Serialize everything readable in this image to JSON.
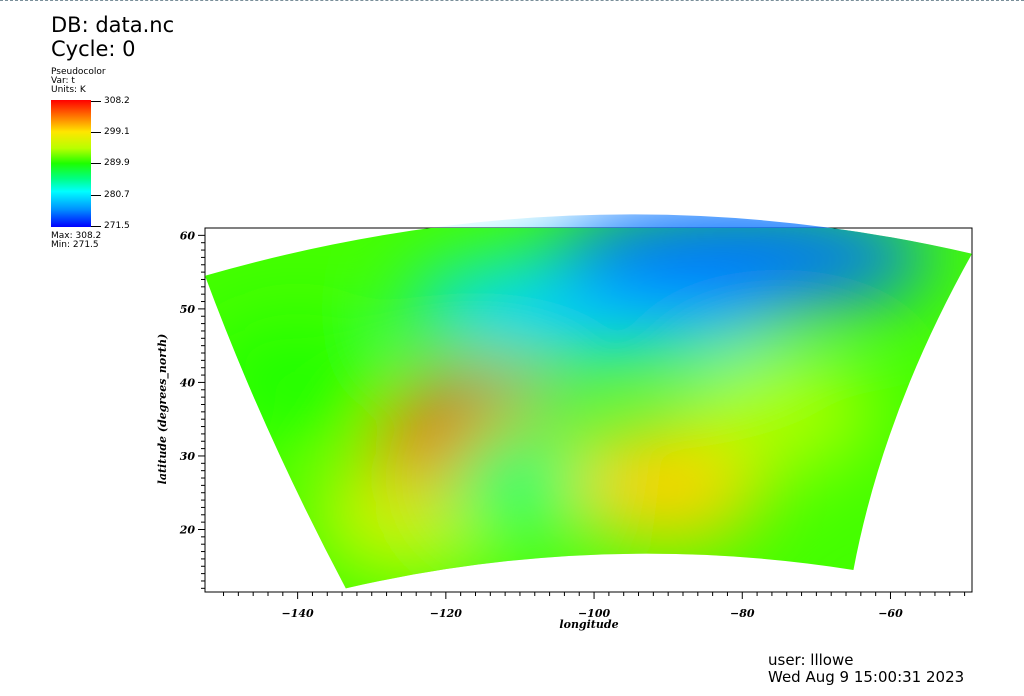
{
  "header": {
    "db_title": "DB: data.nc",
    "cycle": "Cycle: 0"
  },
  "legend": {
    "plot_type": "Pseudocolor",
    "var": "Var: t",
    "units": "Units: K",
    "ticks": [
      "308.2",
      "299.1",
      "289.9",
      "280.7",
      "271.5"
    ],
    "max": "Max:  308.2",
    "min": "Min:  271.5",
    "colormap": [
      "#0000ff",
      "#0092ff",
      "#00ffff",
      "#00ff84",
      "#1dff00",
      "#b9ff00",
      "#ffe600",
      "#ff8a00",
      "#ff0000"
    ]
  },
  "chart_data": {
    "type": "heatmap",
    "title": "",
    "xlabel": "longitude",
    "ylabel": "latitude (degrees_north)",
    "xlim": [
      -152.5,
      -49
    ],
    "ylim": [
      11.5,
      61
    ],
    "x_ticks": [
      -140,
      -120,
      -100,
      -80,
      -60
    ],
    "x_tick_labels": [
      "−140",
      "−120",
      "−100",
      "−80",
      "−60"
    ],
    "y_ticks": [
      20,
      30,
      40,
      50,
      60
    ],
    "y_tick_labels": [
      "20",
      "30",
      "40",
      "50",
      "60"
    ],
    "value_min": 271.5,
    "value_max": 308.2,
    "units": "K",
    "variable": "t",
    "domain_corners": {
      "top_left": [
        -152.5,
        54.5
      ],
      "top_right": [
        -49,
        57.5
      ],
      "bottom_left": [
        -133.5,
        12
      ],
      "bottom_right": [
        -65,
        14.5
      ]
    },
    "regions": [
      {
        "lon": -140,
        "lat": 40,
        "value": 290
      },
      {
        "lon": -125,
        "lat": 22,
        "value": 296
      },
      {
        "lon": -116,
        "lat": 32,
        "value": 307
      },
      {
        "lon": -108,
        "lat": 27,
        "value": 286
      },
      {
        "lon": -100,
        "lat": 50,
        "value": 279
      },
      {
        "lon": -80,
        "lat": 57,
        "value": 275
      },
      {
        "lon": -90,
        "lat": 26,
        "value": 300
      },
      {
        "lon": -75,
        "lat": 36,
        "value": 294
      }
    ]
  },
  "footer": {
    "user": "user: lllowe",
    "date": "Wed Aug  9 15:00:31 2023"
  }
}
